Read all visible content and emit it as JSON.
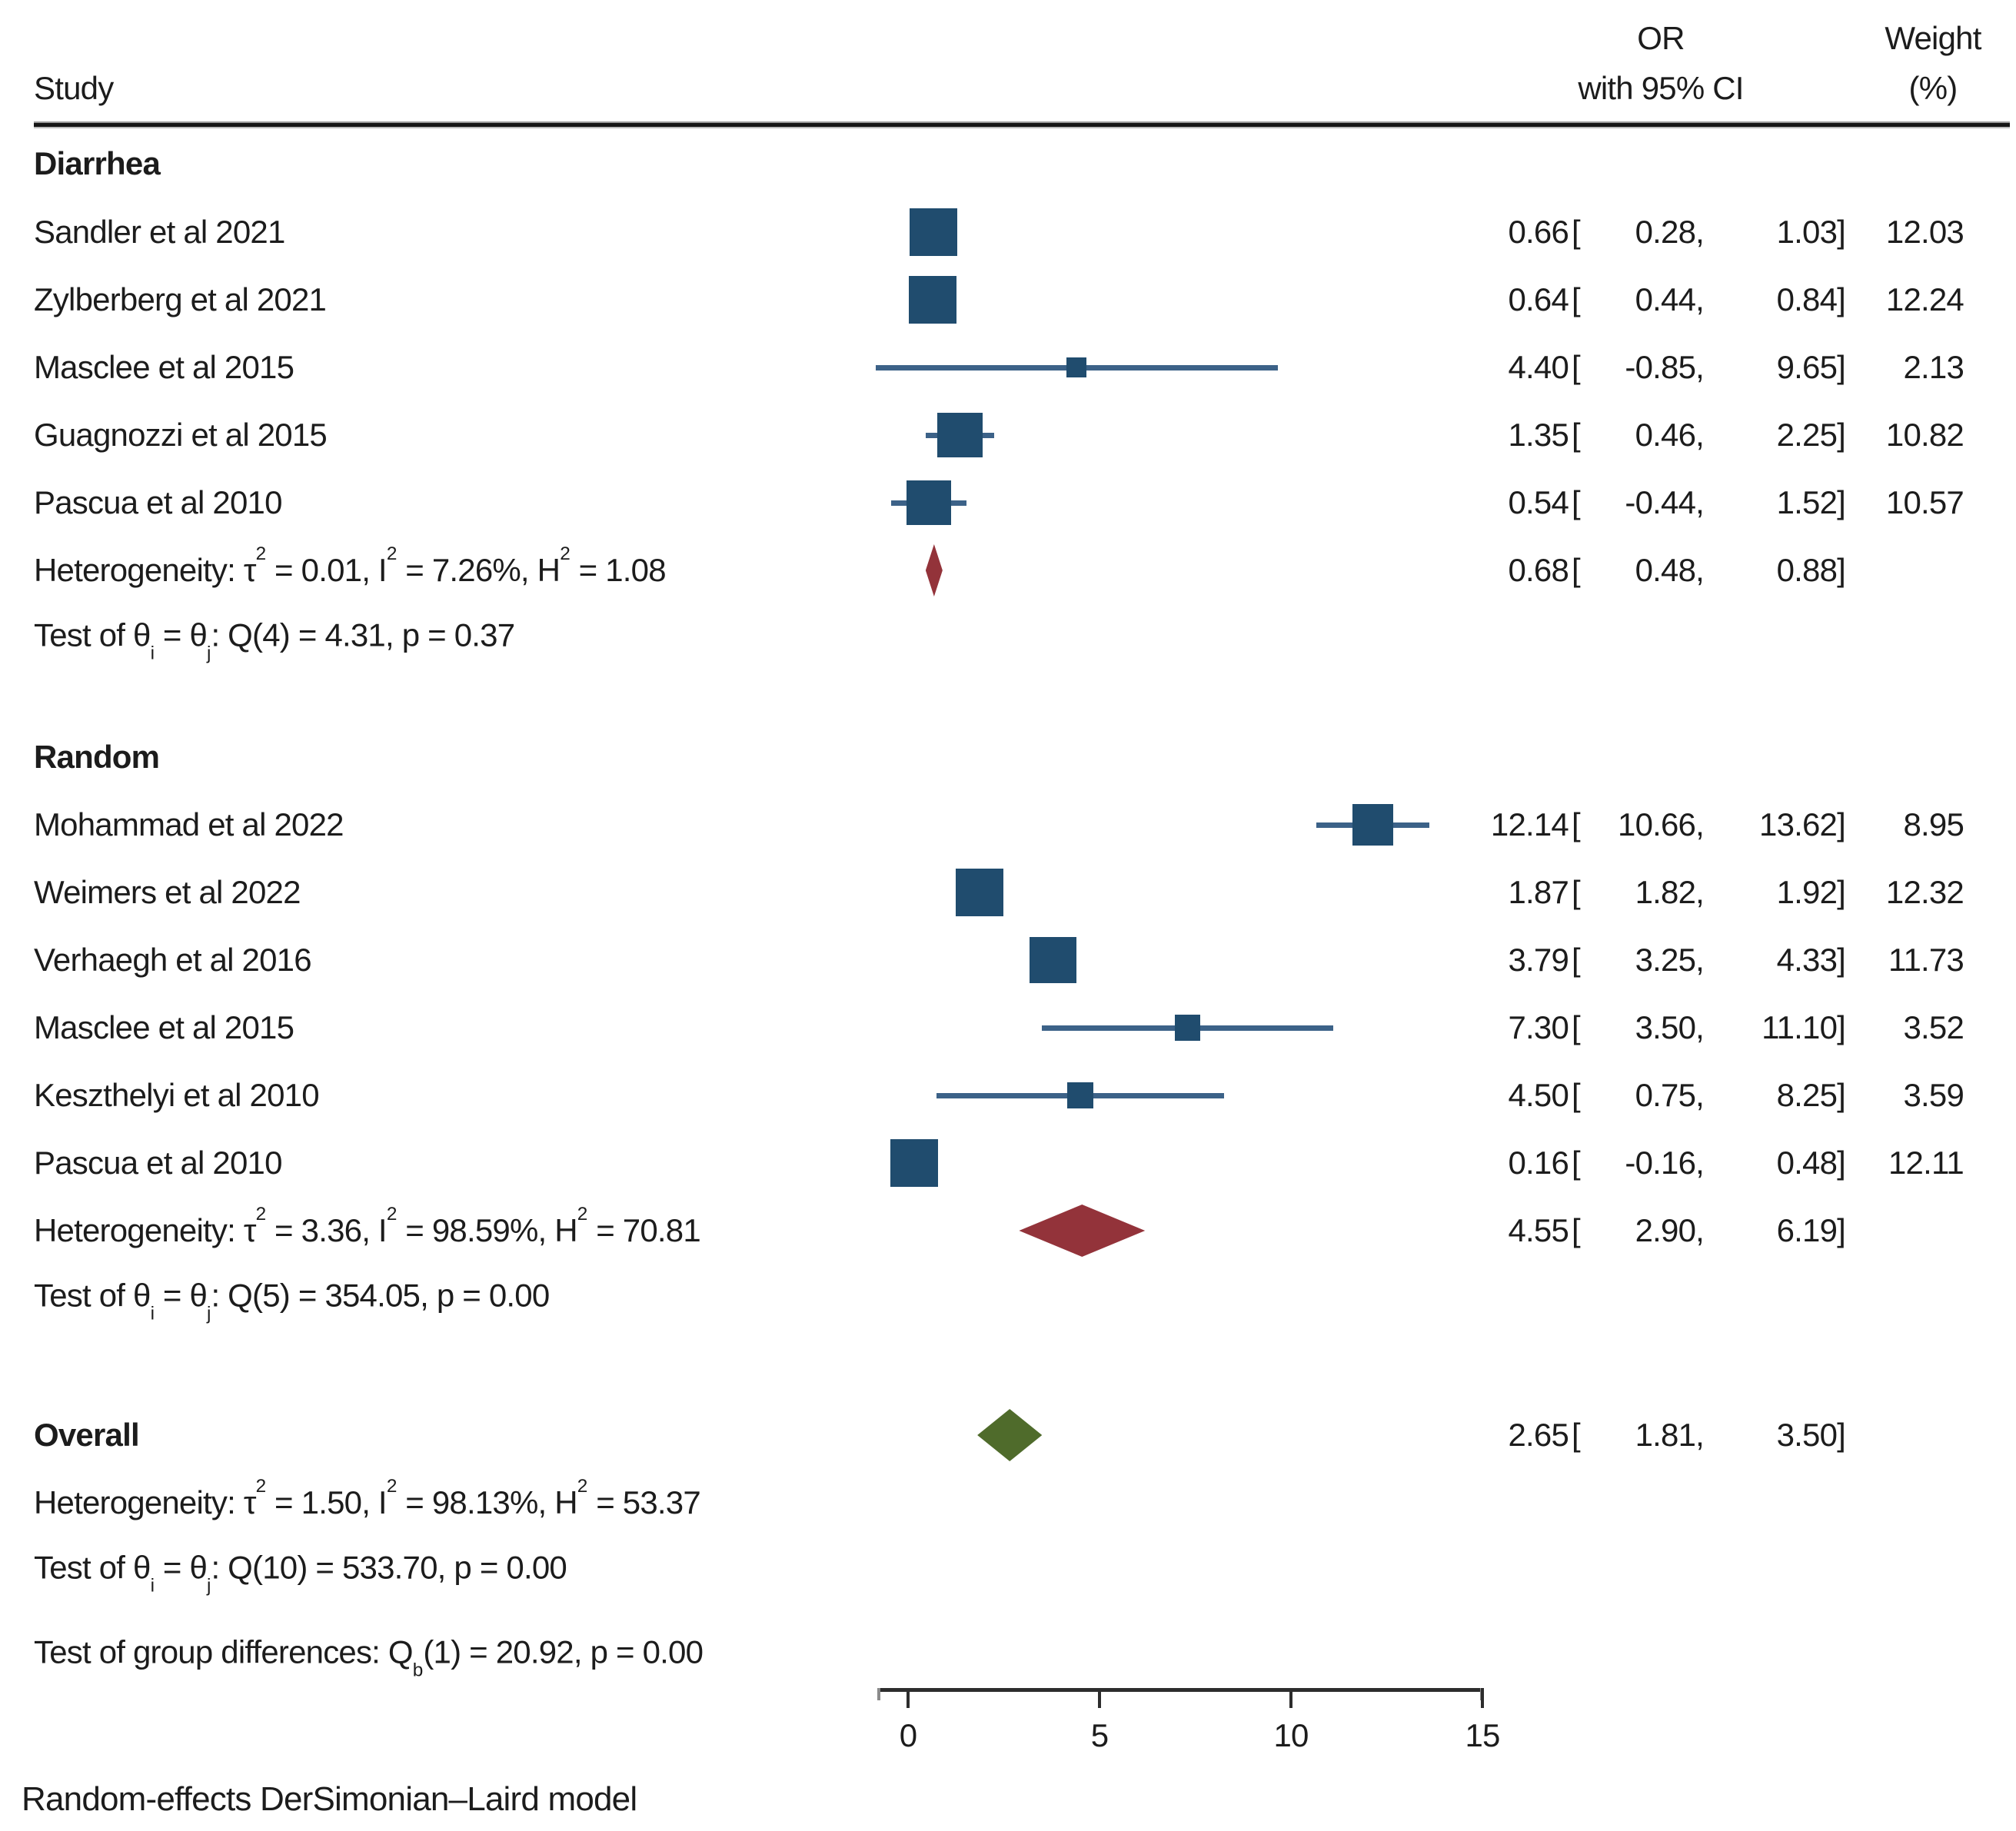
{
  "header": {
    "study_col": "Study",
    "or_col_line1": "OR",
    "or_col_line2": "with 95% CI",
    "weight_col_line1": "Weight",
    "weight_col_line2": "(%)"
  },
  "footer_note": "Random-effects DerSimonian–Laird model",
  "colors": {
    "square": "#204c6e",
    "whisker": "#3c6288",
    "subgroup_diamond": "#93333a",
    "overall_diamond": "#4f6b2b",
    "text": "#1c1c1c",
    "axis": "#2d2d2d"
  },
  "chart_data": {
    "type": "forest",
    "effect_measure": "OR",
    "x_axis": {
      "tick_values": [
        0,
        5,
        10,
        15
      ],
      "tick_labels": [
        "0",
        "5",
        "10",
        "15"
      ],
      "range": [
        0,
        15
      ],
      "grid": false
    },
    "groups": [
      {
        "label": "Diarrhea",
        "studies": [
          {
            "label": "Sandler et al 2021",
            "est": 0.66,
            "lo": 0.28,
            "hi": 1.03,
            "weight": 12.03
          },
          {
            "label": "Zylberberg et al 2021",
            "est": 0.64,
            "lo": 0.44,
            "hi": 0.84,
            "weight": 12.24
          },
          {
            "label": "Masclee et al 2015",
            "est": 4.4,
            "lo": -0.85,
            "hi": 9.65,
            "weight": 2.13
          },
          {
            "label": "Guagnozzi et al 2015",
            "est": 1.35,
            "lo": 0.46,
            "hi": 2.25,
            "weight": 10.82
          },
          {
            "label": "Pascua et al 2010",
            "est": 0.54,
            "lo": -0.44,
            "hi": 1.52,
            "weight": 10.57
          }
        ],
        "summary": {
          "text": "Heterogeneity: τ^{2} = 0.01, I^{2} = 7.26%, H^{2} = 1.08",
          "est": 0.68,
          "lo": 0.48,
          "hi": 0.88
        },
        "test": "Test of θ_{i} = θ_{j}: Q(4) = 4.31, p = 0.37"
      },
      {
        "label": "Random",
        "studies": [
          {
            "label": "Mohammad et al 2022",
            "est": 12.14,
            "lo": 10.66,
            "hi": 13.62,
            "weight": 8.95
          },
          {
            "label": "Weimers et al 2022",
            "est": 1.87,
            "lo": 1.82,
            "hi": 1.92,
            "weight": 12.32
          },
          {
            "label": "Verhaegh et al 2016",
            "est": 3.79,
            "lo": 3.25,
            "hi": 4.33,
            "weight": 11.73
          },
          {
            "label": "Masclee et al 2015",
            "est": 7.3,
            "lo": 3.5,
            "hi": 11.1,
            "weight": 3.52
          },
          {
            "label": "Keszthelyi et al 2010",
            "est": 4.5,
            "lo": 0.75,
            "hi": 8.25,
            "weight": 3.59
          },
          {
            "label": "Pascua et al 2010",
            "est": 0.16,
            "lo": -0.16,
            "hi": 0.48,
            "weight": 12.11
          }
        ],
        "summary": {
          "text": "Heterogeneity: τ^{2} = 3.36, I^{2} = 98.59%, H^{2} = 70.81",
          "est": 4.55,
          "lo": 2.9,
          "hi": 6.19
        },
        "test": "Test of θ_{i} = θ_{j}: Q(5) = 354.05, p = 0.00"
      }
    ],
    "overall": {
      "label": "Overall",
      "summary": {
        "est": 2.65,
        "lo": 1.81,
        "hi": 3.5
      },
      "heterogeneity": "Heterogeneity: τ^{2} = 1.50, I^{2} = 98.13%, H^{2} = 53.37",
      "test": "Test of θ_{i} = θ_{j}: Q(10) = 533.70, p = 0.00",
      "group_difference": "Test of group differences: Q_{b}(1) = 20.92, p = 0.00"
    },
    "model_note": "Random-effects DerSimonian–Laird model"
  }
}
